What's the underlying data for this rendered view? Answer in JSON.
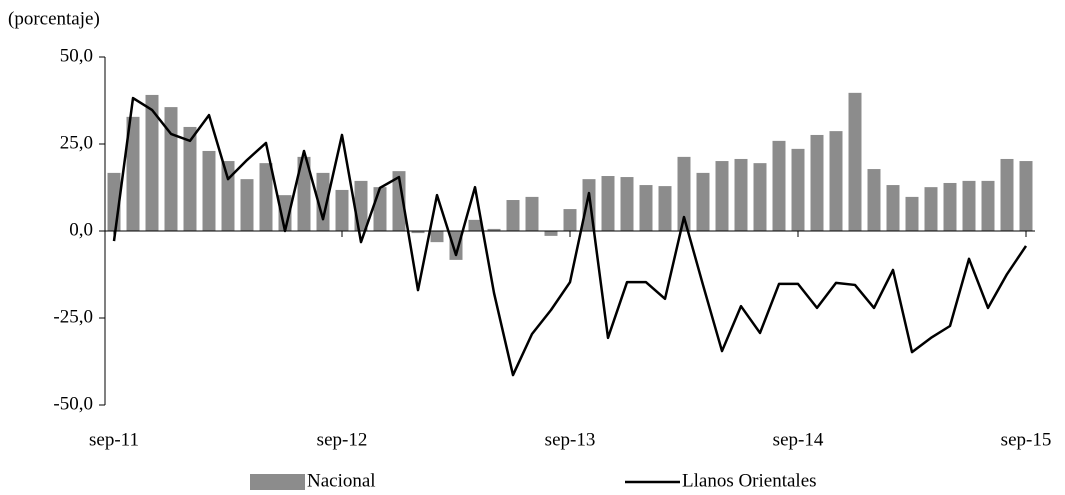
{
  "chart_data": {
    "type": "bar",
    "y_label": "(porcentaje)",
    "categories": [
      "sep-11",
      null,
      null,
      null,
      null,
      null,
      null,
      null,
      null,
      null,
      null,
      null,
      "sep-12",
      null,
      null,
      null,
      null,
      null,
      null,
      null,
      null,
      null,
      null,
      null,
      "sep-13",
      null,
      null,
      null,
      null,
      null,
      null,
      null,
      null,
      null,
      null,
      null,
      "sep-14",
      null,
      null,
      null,
      null,
      null,
      null,
      null,
      null,
      null,
      null,
      null,
      "sep-15"
    ],
    "series": [
      {
        "name": "Nacional",
        "type": "bar",
        "color": "#8c8c8c",
        "values": [
          16.7,
          32.8,
          39.1,
          35.6,
          29.9,
          23.0,
          20.1,
          14.9,
          19.5,
          10.3,
          21.3,
          16.7,
          11.8,
          14.4,
          12.6,
          17.2,
          -0.6,
          -3.2,
          -8.3,
          3.2,
          0.6,
          8.9,
          9.8,
          -1.4,
          6.3,
          14.9,
          15.8,
          15.5,
          13.2,
          12.9,
          21.3,
          16.7,
          20.1,
          20.7,
          19.5,
          25.9,
          23.6,
          27.6,
          28.7,
          39.7,
          17.8,
          13.2,
          9.8,
          12.6,
          13.8,
          14.4,
          14.4,
          20.7,
          20.1
        ]
      },
      {
        "name": "Llanos Orientales",
        "type": "line",
        "color": "#000000",
        "values": [
          -2.9,
          38.2,
          34.8,
          27.9,
          25.9,
          33.3,
          14.9,
          20.4,
          25.3,
          0,
          23.0,
          3.4,
          27.6,
          -3.2,
          12.4,
          15.5,
          -17.0,
          10.3,
          -6.9,
          12.6,
          -17.8,
          -41.4,
          -29.6,
          -22.7,
          -14.7,
          10.9,
          -30.7,
          -14.7,
          -14.7,
          -19.5,
          4.0,
          -15.5,
          -34.5,
          -21.6,
          -29.3,
          -15.2,
          -15.2,
          -22.1,
          -14.9,
          -15.5,
          -22.1,
          -11.2,
          -34.8,
          -30.7,
          -27.3,
          -8.0,
          -22.1,
          -12.4,
          -4.3
        ]
      }
    ],
    "ylim": [
      -50,
      50
    ],
    "yticks": [
      {
        "value": -50,
        "label": "-50,0"
      },
      {
        "value": -25,
        "label": "-25,0"
      },
      {
        "value": 0,
        "label": "0,0"
      },
      {
        "value": 25,
        "label": "25,0"
      },
      {
        "value": 50,
        "label": "50,0"
      }
    ],
    "grid": false
  }
}
